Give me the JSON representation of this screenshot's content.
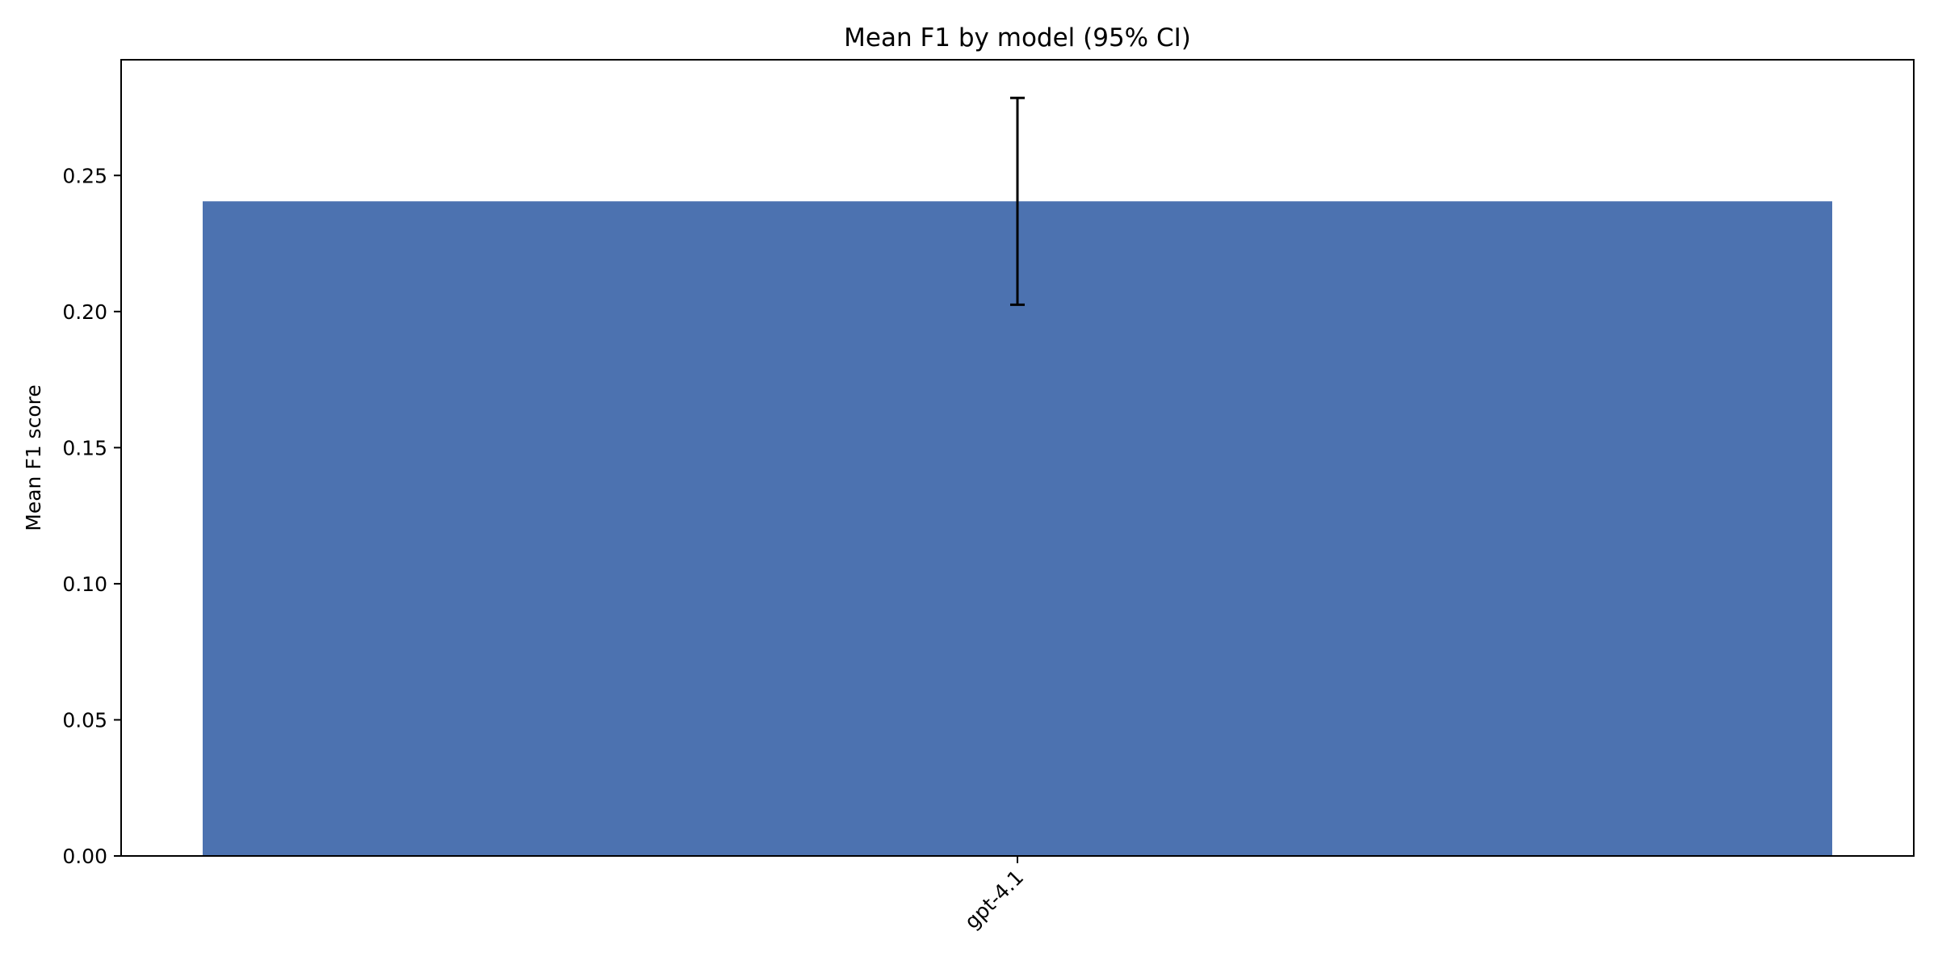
{
  "chart_data": {
    "type": "bar",
    "title": "Mean F1 by model (95% CI)",
    "xlabel": "",
    "ylabel": "Mean F1 score",
    "categories": [
      "gpt-4.1"
    ],
    "values": [
      0.2405
    ],
    "error_low": [
      0.2025
    ],
    "error_high": [
      0.2785
    ],
    "ylim": [
      0,
      0.2925
    ],
    "yticks": [
      0.0,
      0.05,
      0.1,
      0.15,
      0.2,
      0.25
    ],
    "ytick_labels": [
      "0.00",
      "0.05",
      "0.10",
      "0.15",
      "0.20",
      "0.25"
    ],
    "grid": false,
    "bar_color": "#4c72b0",
    "error_color": "#000000"
  }
}
